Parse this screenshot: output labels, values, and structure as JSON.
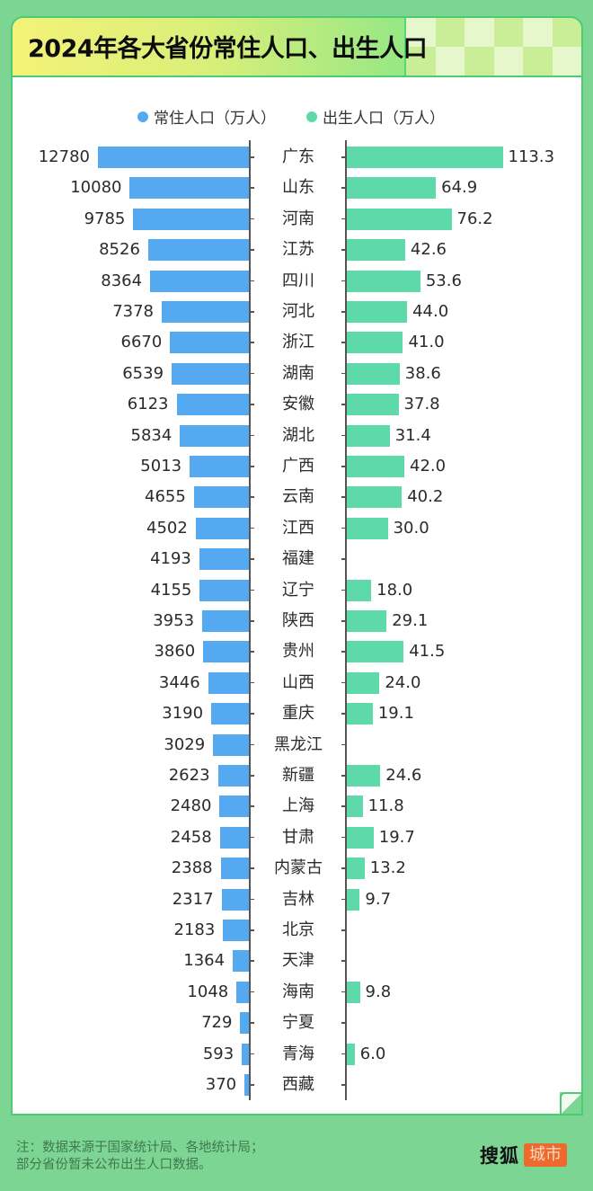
{
  "header": {
    "title": "2024年各大省份常住人口、出生人口"
  },
  "legend": [
    {
      "label": "常住人口（万人）",
      "color": "#55a9f0"
    },
    {
      "label": "出生人口（万人）",
      "color": "#5ed9a9"
    }
  ],
  "footer": {
    "note_line1": "注：数据来源于国家统计局、各地统计局；",
    "note_line2": "部分省份暂未公布出生人口数据。",
    "logo_main": "搜狐",
    "logo_badge": "城市"
  },
  "colors": {
    "background": "#7dd593",
    "resident_bar": "#55a9f0",
    "birth_bar": "#5ed9a9",
    "logo_badge": "#ee6a2c"
  },
  "chart_data": {
    "type": "bar",
    "orientation": "horizontal-butterfly",
    "title": "2024年各大省份常住人口、出生人口",
    "categories": [
      "广东",
      "山东",
      "河南",
      "江苏",
      "四川",
      "河北",
      "浙江",
      "湖南",
      "安徽",
      "湖北",
      "广西",
      "云南",
      "江西",
      "福建",
      "辽宁",
      "陕西",
      "贵州",
      "山西",
      "重庆",
      "黑龙江",
      "新疆",
      "上海",
      "甘肃",
      "内蒙古",
      "吉林",
      "北京",
      "天津",
      "海南",
      "宁夏",
      "青海",
      "西藏"
    ],
    "series": [
      {
        "name": "常住人口（万人）",
        "values": [
          12780,
          10080,
          9785,
          8526,
          8364,
          7378,
          6670,
          6539,
          6123,
          5834,
          5013,
          4655,
          4502,
          4193,
          4155,
          3953,
          3860,
          3446,
          3190,
          3029,
          2623,
          2480,
          2458,
          2388,
          2317,
          2183,
          1364,
          1048,
          729,
          593,
          370
        ]
      },
      {
        "name": "出生人口（万人）",
        "values": [
          "113.3",
          "64.9",
          "76.2",
          "42.6",
          "53.6",
          "44.0",
          "41.0",
          "38.6",
          "37.8",
          "31.4",
          "42.0",
          "40.2",
          "30.0",
          null,
          "18.0",
          "29.1",
          "41.5",
          "24.0",
          "19.1",
          null,
          "24.6",
          "11.8",
          "19.7",
          "13.2",
          "9.7",
          null,
          null,
          "9.8",
          null,
          "6.0",
          null
        ]
      }
    ],
    "legend_position": "top",
    "grid": false,
    "xlabel": "",
    "ylabel": ""
  }
}
